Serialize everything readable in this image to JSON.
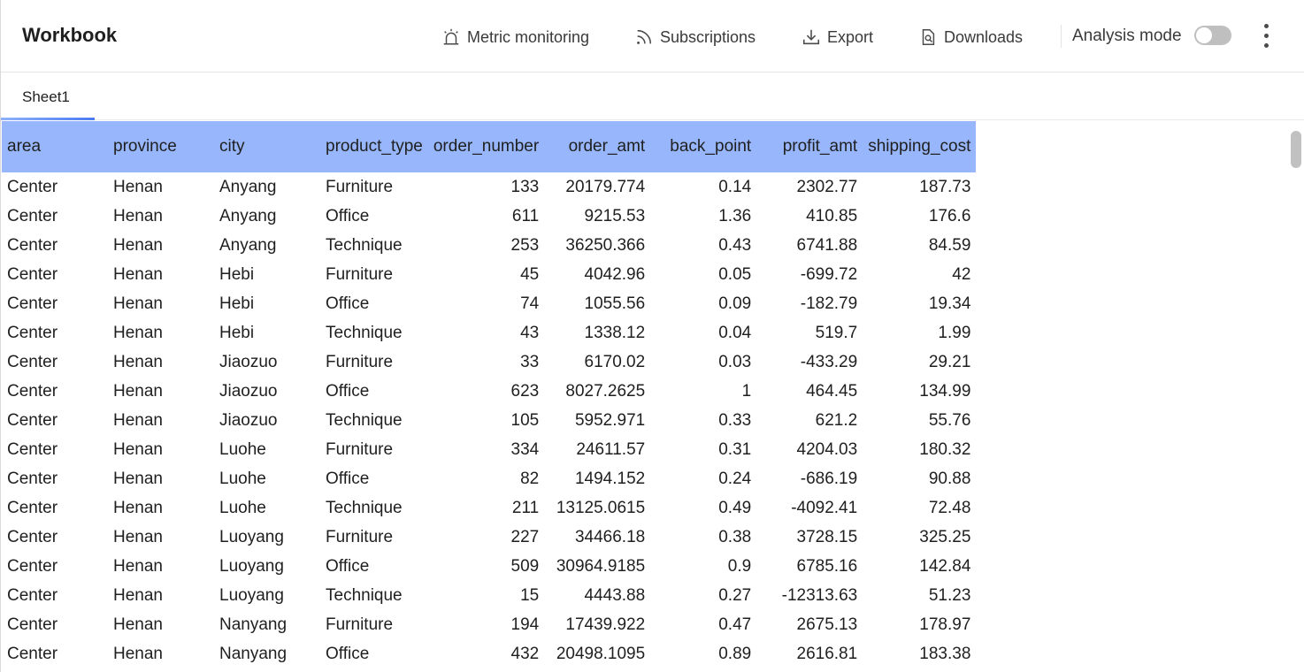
{
  "header": {
    "title": "Workbook",
    "actions": {
      "metric_monitoring": "Metric monitoring",
      "subscriptions": "Subscriptions",
      "export": "Export",
      "downloads": "Downloads"
    },
    "analysis_mode_label": "Analysis mode",
    "analysis_mode_on": false
  },
  "tabs": [
    {
      "label": "Sheet1",
      "active": true
    }
  ],
  "colors": {
    "header_row": "#97b6fc",
    "tab_underline": "#4b7bf0"
  },
  "icons": [
    "alarm-icon",
    "rss-icon",
    "download-icon",
    "file-search-icon",
    "more-vertical-icon"
  ],
  "table": {
    "columns": [
      "area",
      "province",
      "city",
      "product_type",
      "order_number",
      "order_amt",
      "back_point",
      "profit_amt",
      "shipping_cost"
    ],
    "rows": [
      [
        "Center",
        "Henan",
        "Anyang",
        "Furniture",
        "133",
        "20179.774",
        "0.14",
        "2302.77",
        "187.73"
      ],
      [
        "Center",
        "Henan",
        "Anyang",
        "Office",
        "611",
        "9215.53",
        "1.36",
        "410.85",
        "176.6"
      ],
      [
        "Center",
        "Henan",
        "Anyang",
        "Technique",
        "253",
        "36250.366",
        "0.43",
        "6741.88",
        "84.59"
      ],
      [
        "Center",
        "Henan",
        "Hebi",
        "Furniture",
        "45",
        "4042.96",
        "0.05",
        "-699.72",
        "42"
      ],
      [
        "Center",
        "Henan",
        "Hebi",
        "Office",
        "74",
        "1055.56",
        "0.09",
        "-182.79",
        "19.34"
      ],
      [
        "Center",
        "Henan",
        "Hebi",
        "Technique",
        "43",
        "1338.12",
        "0.04",
        "519.7",
        "1.99"
      ],
      [
        "Center",
        "Henan",
        "Jiaozuo",
        "Furniture",
        "33",
        "6170.02",
        "0.03",
        "-433.29",
        "29.21"
      ],
      [
        "Center",
        "Henan",
        "Jiaozuo",
        "Office",
        "623",
        "8027.2625",
        "1",
        "464.45",
        "134.99"
      ],
      [
        "Center",
        "Henan",
        "Jiaozuo",
        "Technique",
        "105",
        "5952.971",
        "0.33",
        "621.2",
        "55.76"
      ],
      [
        "Center",
        "Henan",
        "Luohe",
        "Furniture",
        "334",
        "24611.57",
        "0.31",
        "4204.03",
        "180.32"
      ],
      [
        "Center",
        "Henan",
        "Luohe",
        "Office",
        "82",
        "1494.152",
        "0.24",
        "-686.19",
        "90.88"
      ],
      [
        "Center",
        "Henan",
        "Luohe",
        "Technique",
        "211",
        "13125.0615",
        "0.49",
        "-4092.41",
        "72.48"
      ],
      [
        "Center",
        "Henan",
        "Luoyang",
        "Furniture",
        "227",
        "34466.18",
        "0.38",
        "3728.15",
        "325.25"
      ],
      [
        "Center",
        "Henan",
        "Luoyang",
        "Office",
        "509",
        "30964.9185",
        "0.9",
        "6785.16",
        "142.84"
      ],
      [
        "Center",
        "Henan",
        "Luoyang",
        "Technique",
        "15",
        "4443.88",
        "0.27",
        "-12313.63",
        "51.23"
      ],
      [
        "Center",
        "Henan",
        "Nanyang",
        "Furniture",
        "194",
        "17439.922",
        "0.47",
        "2675.13",
        "178.97"
      ],
      [
        "Center",
        "Henan",
        "Nanyang",
        "Office",
        "432",
        "20498.1095",
        "0.89",
        "2616.81",
        "183.38"
      ]
    ]
  }
}
